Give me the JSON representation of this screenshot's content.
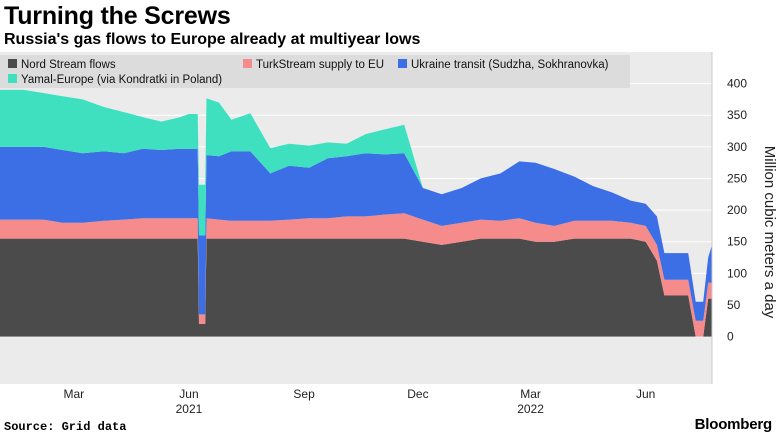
{
  "title": "Turning the Screws",
  "subtitle": "Russia's gas flows to Europe already at multiyear lows",
  "source": "Source: Grid data",
  "brand": "Bloomberg",
  "chart_data": {
    "type": "area",
    "stacked": true,
    "ylabel": "Million cubic meters a day",
    "ylim": [
      -75,
      450
    ],
    "yticks": [
      0,
      50,
      100,
      150,
      200,
      250,
      300,
      350,
      400
    ],
    "xlim": [
      "2021-01-01",
      "2022-07-24"
    ],
    "xticks": [
      {
        "date": "2021-03-01",
        "label": "Mar"
      },
      {
        "date": "2021-06-01",
        "label": "Jun"
      },
      {
        "date": "2021-09-01",
        "label": "Sep"
      },
      {
        "date": "2021-12-01",
        "label": "Dec"
      },
      {
        "date": "2022-03-01",
        "label": "Mar"
      },
      {
        "date": "2022-06-01",
        "label": "Jun"
      }
    ],
    "year_labels": [
      {
        "date": "2021-06-01",
        "label": "2021"
      },
      {
        "date": "2022-03-01",
        "label": "2022"
      }
    ],
    "legend_position": "top",
    "dates": [
      "2021-01-01",
      "2021-01-20",
      "2021-02-05",
      "2021-02-20",
      "2021-03-08",
      "2021-03-25",
      "2021-04-10",
      "2021-04-25",
      "2021-05-10",
      "2021-05-25",
      "2021-06-01",
      "2021-06-08",
      "2021-06-09",
      "2021-06-14",
      "2021-06-15",
      "2021-06-25",
      "2021-07-05",
      "2021-07-20",
      "2021-08-05",
      "2021-08-20",
      "2021-09-05",
      "2021-09-20",
      "2021-10-05",
      "2021-10-20",
      "2021-11-05",
      "2021-11-20",
      "2021-12-05",
      "2021-12-20",
      "2022-01-05",
      "2022-01-20",
      "2022-02-05",
      "2022-02-20",
      "2022-03-05",
      "2022-03-20",
      "2022-04-05",
      "2022-04-20",
      "2022-05-05",
      "2022-05-20",
      "2022-06-01",
      "2022-06-10",
      "2022-06-16",
      "2022-06-25",
      "2022-07-05",
      "2022-07-11",
      "2022-07-17",
      "2022-07-21",
      "2022-07-24"
    ],
    "series": [
      {
        "name": "Nord Stream flows",
        "color": "#4b4b4b",
        "values": [
          155,
          155,
          155,
          155,
          155,
          155,
          155,
          155,
          155,
          155,
          155,
          155,
          20,
          20,
          155,
          155,
          155,
          155,
          155,
          155,
          155,
          155,
          155,
          155,
          155,
          155,
          150,
          145,
          150,
          155,
          155,
          155,
          150,
          150,
          155,
          155,
          155,
          155,
          150,
          120,
          65,
          65,
          65,
          0,
          0,
          60,
          60
        ]
      },
      {
        "name": "TurkStream supply to EU",
        "color": "#f68b8b",
        "values": [
          30,
          30,
          30,
          25,
          25,
          28,
          30,
          32,
          32,
          32,
          32,
          32,
          15,
          15,
          32,
          30,
          28,
          28,
          28,
          30,
          32,
          32,
          35,
          35,
          38,
          40,
          35,
          30,
          30,
          30,
          28,
          32,
          30,
          25,
          28,
          28,
          28,
          25,
          25,
          25,
          25,
          25,
          25,
          25,
          25,
          25,
          25
        ]
      },
      {
        "name": "Ukraine transit (Sudzha, Sokhranovka)",
        "color": "#3c6ee6",
        "values": [
          115,
          115,
          115,
          115,
          110,
          110,
          105,
          110,
          108,
          110,
          110,
          110,
          125,
          125,
          100,
          100,
          110,
          110,
          75,
          85,
          80,
          95,
          95,
          100,
          95,
          95,
          50,
          50,
          55,
          65,
          75,
          90,
          95,
          90,
          70,
          55,
          45,
          35,
          35,
          45,
          42,
          42,
          42,
          30,
          30,
          40,
          60
        ]
      },
      {
        "name": "Yamal-Europe (via Kondratki in Poland)",
        "color": "#3fe0c0",
        "values": [
          90,
          90,
          85,
          85,
          85,
          70,
          65,
          50,
          45,
          50,
          55,
          55,
          80,
          80,
          90,
          85,
          50,
          60,
          40,
          35,
          35,
          25,
          20,
          30,
          40,
          45,
          0,
          0,
          0,
          0,
          0,
          0,
          0,
          0,
          0,
          0,
          0,
          0,
          0,
          0,
          0,
          0,
          0,
          0,
          0,
          0,
          0
        ]
      }
    ]
  }
}
